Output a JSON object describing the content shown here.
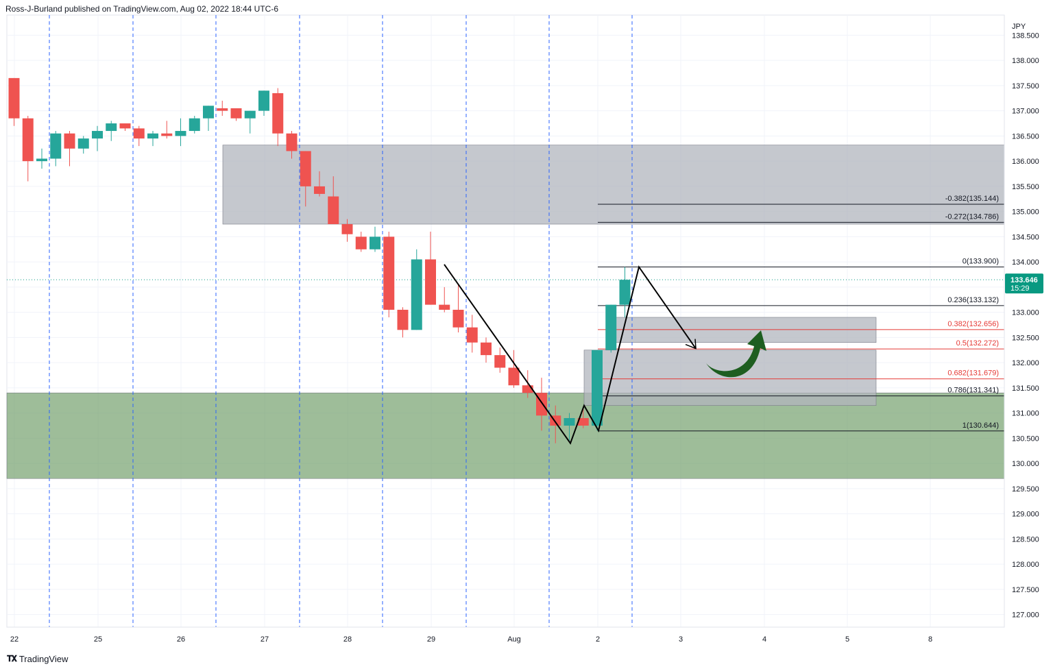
{
  "header": {
    "text": "Ross-J-Burland published on TradingView.com, Aug 02, 2022 18:44 UTC-6"
  },
  "footer": {
    "brand": "TradingView",
    "logo_icon": "tradingview-logo-icon"
  },
  "chart_data": {
    "type": "candlestick",
    "currency_label": "JPY",
    "ylim": [
      126.75,
      138.9
    ],
    "y_ticks": [
      "127.000",
      "127.500",
      "128.000",
      "128.500",
      "129.000",
      "129.500",
      "130.000",
      "130.500",
      "131.000",
      "131.500",
      "132.000",
      "132.500",
      "133.000",
      "133.500",
      "134.000",
      "134.500",
      "135.000",
      "135.500",
      "136.000",
      "136.500",
      "137.000",
      "137.500",
      "138.000",
      "138.500"
    ],
    "x_ticks": [
      "22",
      "25",
      "26",
      "27",
      "28",
      "29",
      "Aug",
      "2",
      "3",
      "4",
      "5",
      "8"
    ],
    "last_price": {
      "value": "133.646",
      "countdown": "15:29",
      "price": 133.646
    },
    "candles": [
      [
        137.65,
        137.65,
        136.7,
        136.85
      ],
      [
        136.85,
        136.9,
        135.6,
        136.0
      ],
      [
        136.0,
        136.25,
        135.85,
        136.05
      ],
      [
        136.05,
        136.6,
        135.9,
        136.55
      ],
      [
        136.55,
        136.6,
        135.9,
        136.25
      ],
      [
        136.25,
        136.5,
        136.15,
        136.45
      ],
      [
        136.45,
        136.7,
        136.2,
        136.6
      ],
      [
        136.6,
        136.8,
        136.4,
        136.75
      ],
      [
        136.75,
        136.75,
        136.6,
        136.65
      ],
      [
        136.65,
        136.7,
        136.3,
        136.45
      ],
      [
        136.45,
        136.6,
        136.3,
        136.55
      ],
      [
        136.55,
        136.8,
        136.45,
        136.5
      ],
      [
        136.5,
        136.85,
        136.3,
        136.6
      ],
      [
        136.6,
        136.9,
        136.55,
        136.85
      ],
      [
        136.85,
        137.1,
        136.6,
        137.1
      ],
      [
        137.05,
        137.2,
        136.9,
        137.0
      ],
      [
        137.05,
        137.05,
        136.8,
        136.85
      ],
      [
        136.85,
        137.0,
        136.55,
        137.0
      ],
      [
        137.0,
        137.4,
        136.9,
        137.4
      ],
      [
        137.35,
        137.45,
        136.3,
        136.55
      ],
      [
        136.55,
        136.6,
        136.05,
        136.2
      ],
      [
        136.2,
        136.2,
        135.1,
        135.5
      ],
      [
        135.5,
        135.8,
        135.3,
        135.35
      ],
      [
        135.3,
        135.7,
        134.8,
        134.75
      ],
      [
        134.75,
        134.85,
        134.4,
        134.55
      ],
      [
        134.5,
        134.6,
        134.2,
        134.25
      ],
      [
        134.25,
        134.7,
        134.2,
        134.5
      ],
      [
        134.5,
        134.6,
        132.9,
        133.05
      ],
      [
        133.05,
        133.1,
        132.5,
        132.65
      ],
      [
        132.65,
        134.25,
        132.65,
        134.05
      ],
      [
        134.05,
        134.6,
        133.15,
        133.15
      ],
      [
        133.15,
        133.5,
        133.0,
        133.05
      ],
      [
        133.05,
        133.55,
        132.6,
        132.7
      ],
      [
        132.7,
        132.95,
        132.2,
        132.4
      ],
      [
        132.4,
        132.5,
        132.0,
        132.15
      ],
      [
        132.15,
        132.3,
        131.8,
        131.9
      ],
      [
        131.9,
        132.25,
        131.5,
        131.55
      ],
      [
        131.55,
        131.85,
        131.3,
        131.4
      ],
      [
        131.4,
        131.7,
        130.65,
        130.95
      ],
      [
        130.95,
        131.15,
        130.4,
        130.75
      ],
      [
        130.75,
        131.0,
        130.45,
        130.9
      ],
      [
        130.9,
        131.1,
        130.7,
        130.75
      ],
      [
        130.75,
        132.25,
        130.65,
        132.25
      ],
      [
        132.25,
        133.15,
        132.2,
        133.15
      ],
      [
        133.15,
        133.9,
        132.9,
        133.646
      ]
    ],
    "session_markers": [
      "22",
      "25",
      "26",
      "27",
      "28",
      "29",
      "Aug",
      "2"
    ],
    "fibonacci": [
      {
        "ratio": "-0.382",
        "price": 135.144,
        "label": "-0.382(135.144)",
        "color": "#131722"
      },
      {
        "ratio": "-0.272",
        "price": 134.786,
        "label": "-0.272(134.786)",
        "color": "#131722"
      },
      {
        "ratio": "0",
        "price": 133.9,
        "label": "0(133.900)",
        "color": "#131722"
      },
      {
        "ratio": "0.236",
        "price": 133.132,
        "label": "0.236(133.132)",
        "color": "#131722"
      },
      {
        "ratio": "0.382",
        "price": 132.656,
        "label": "0.382(132.656)",
        "color": "#e53935"
      },
      {
        "ratio": "0.5",
        "price": 132.272,
        "label": "0.5(132.272)",
        "color": "#e53935"
      },
      {
        "ratio": "0.682",
        "price": 131.679,
        "label": "0.682(131.679)",
        "color": "#e53935"
      },
      {
        "ratio": "0.786",
        "price": 131.341,
        "label": "0.786(131.341)",
        "color": "#131722"
      },
      {
        "ratio": "1",
        "price": 130.644,
        "label": "1(130.644)",
        "color": "#131722"
      }
    ],
    "zones": [
      {
        "name": "resistance-zone",
        "from_label": "26",
        "to_label": "right-edge",
        "top": 136.32,
        "bottom": 134.75,
        "color": "#b2b5be"
      },
      {
        "name": "support-zone",
        "from_label": "left-edge",
        "to_label": "right-edge",
        "top": 131.4,
        "bottom": 129.7,
        "color": "#6a9a63"
      },
      {
        "name": "target-zone-upper",
        "from_label": "2",
        "to_label": "5",
        "top": 132.9,
        "bottom": 132.4,
        "color": "#b2b5be"
      },
      {
        "name": "target-zone-lower",
        "from_label": "2",
        "to_label": "5",
        "top": 132.25,
        "bottom": 131.15,
        "color": "#b2b5be"
      }
    ],
    "colors": {
      "up": "#26a69a",
      "down": "#ef5350",
      "grid": "#f0f3fa",
      "session": "#2962ff",
      "arrow": "#1e5e20",
      "price_tag": "#089981"
    },
    "annotations": {
      "curved_arrow": "green-curved-up-arrow-icon",
      "path_arrow": "projection-arrow"
    }
  }
}
